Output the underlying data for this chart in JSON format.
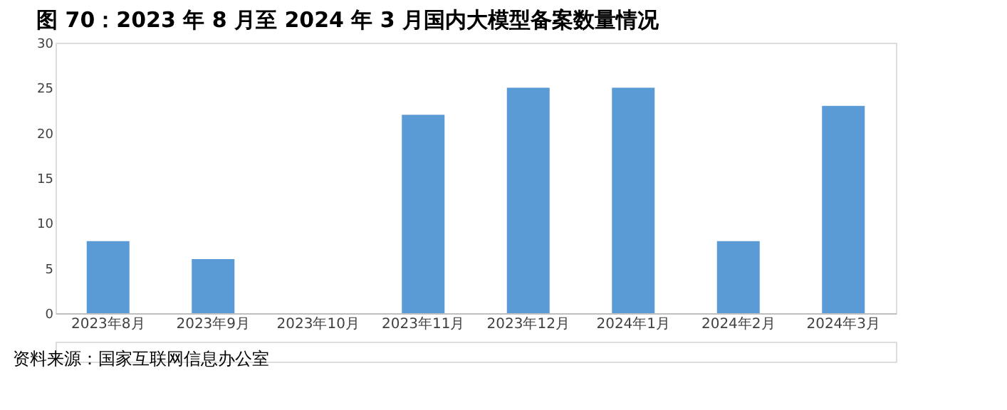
{
  "chart_data": {
    "type": "bar",
    "title": "图 70：2023 年 8 月至 2024 年 3 月国内大模型备案数量情况",
    "categories": [
      "2023年8月",
      "2023年9月",
      "2023年10月",
      "2023年11月",
      "2023年12月",
      "2024年1月",
      "2024年2月",
      "2024年3月"
    ],
    "values": [
      8,
      6,
      0,
      22,
      25,
      25,
      8,
      23
    ],
    "color": "#5b9bd5",
    "ylim": [
      0,
      30
    ],
    "yticks": [
      0,
      5,
      10,
      15,
      20,
      25,
      30
    ],
    "grid": false,
    "annotations": [
      "资料来源：国家互联网信息办公室"
    ]
  }
}
